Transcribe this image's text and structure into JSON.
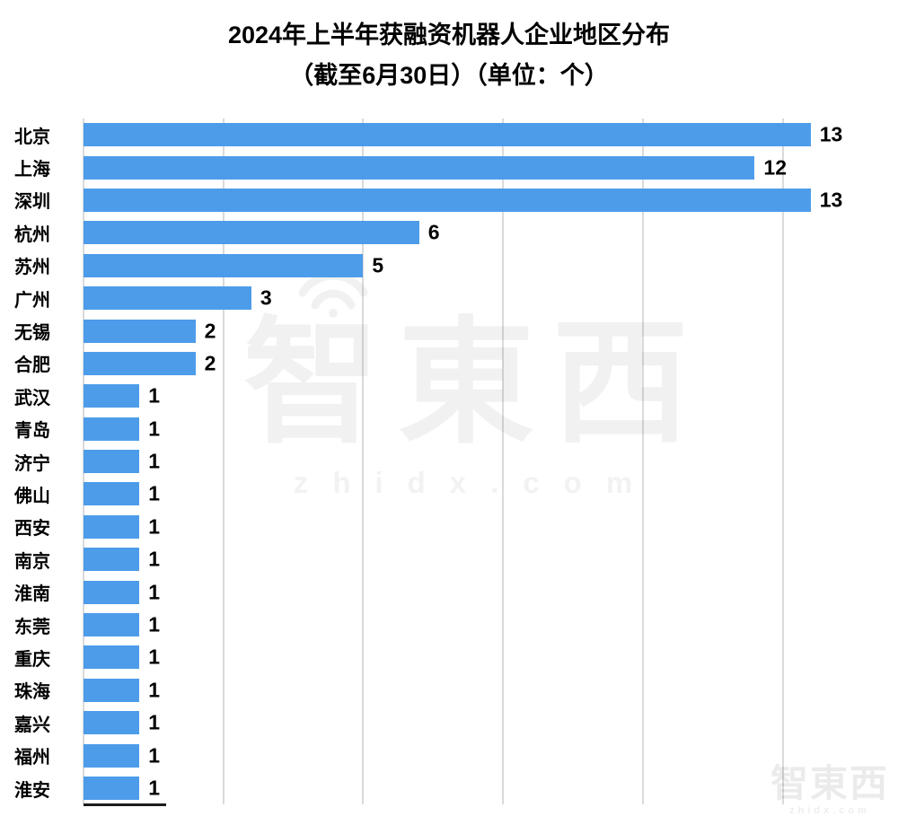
{
  "title": {
    "line1": "2024年上半年获融资机器人企业地区分布",
    "line2": "（截至6月30日）（单位：个）"
  },
  "chart_data": {
    "type": "bar",
    "orientation": "horizontal",
    "title": "2024年上半年获融资机器人企业地区分布（截至6月30日）（单位：个）",
    "categories": [
      "北京",
      "上海",
      "深圳",
      "杭州",
      "苏州",
      "广州",
      "无锡",
      "合肥",
      "武汉",
      "青岛",
      "济宁",
      "佛山",
      "西安",
      "南京",
      "淮南",
      "东莞",
      "重庆",
      "珠海",
      "嘉兴",
      "福州",
      "淮安"
    ],
    "values": [
      13,
      12,
      13,
      6,
      5,
      3,
      2,
      2,
      1,
      1,
      1,
      1,
      1,
      1,
      1,
      1,
      1,
      1,
      1,
      1,
      1
    ],
    "xlabel": "",
    "ylabel": "",
    "xlim": [
      0,
      14
    ],
    "gridline_step": 2.5,
    "grid": "vertical",
    "legend": "none",
    "bar_color": "#4d9cea",
    "gridline_color": "#dadada",
    "value_label_color": "#000000"
  },
  "watermark": {
    "main": "智東西",
    "sub": "zhidx.com",
    "corner": "智東西",
    "corner_sub": "zhidx.com"
  }
}
